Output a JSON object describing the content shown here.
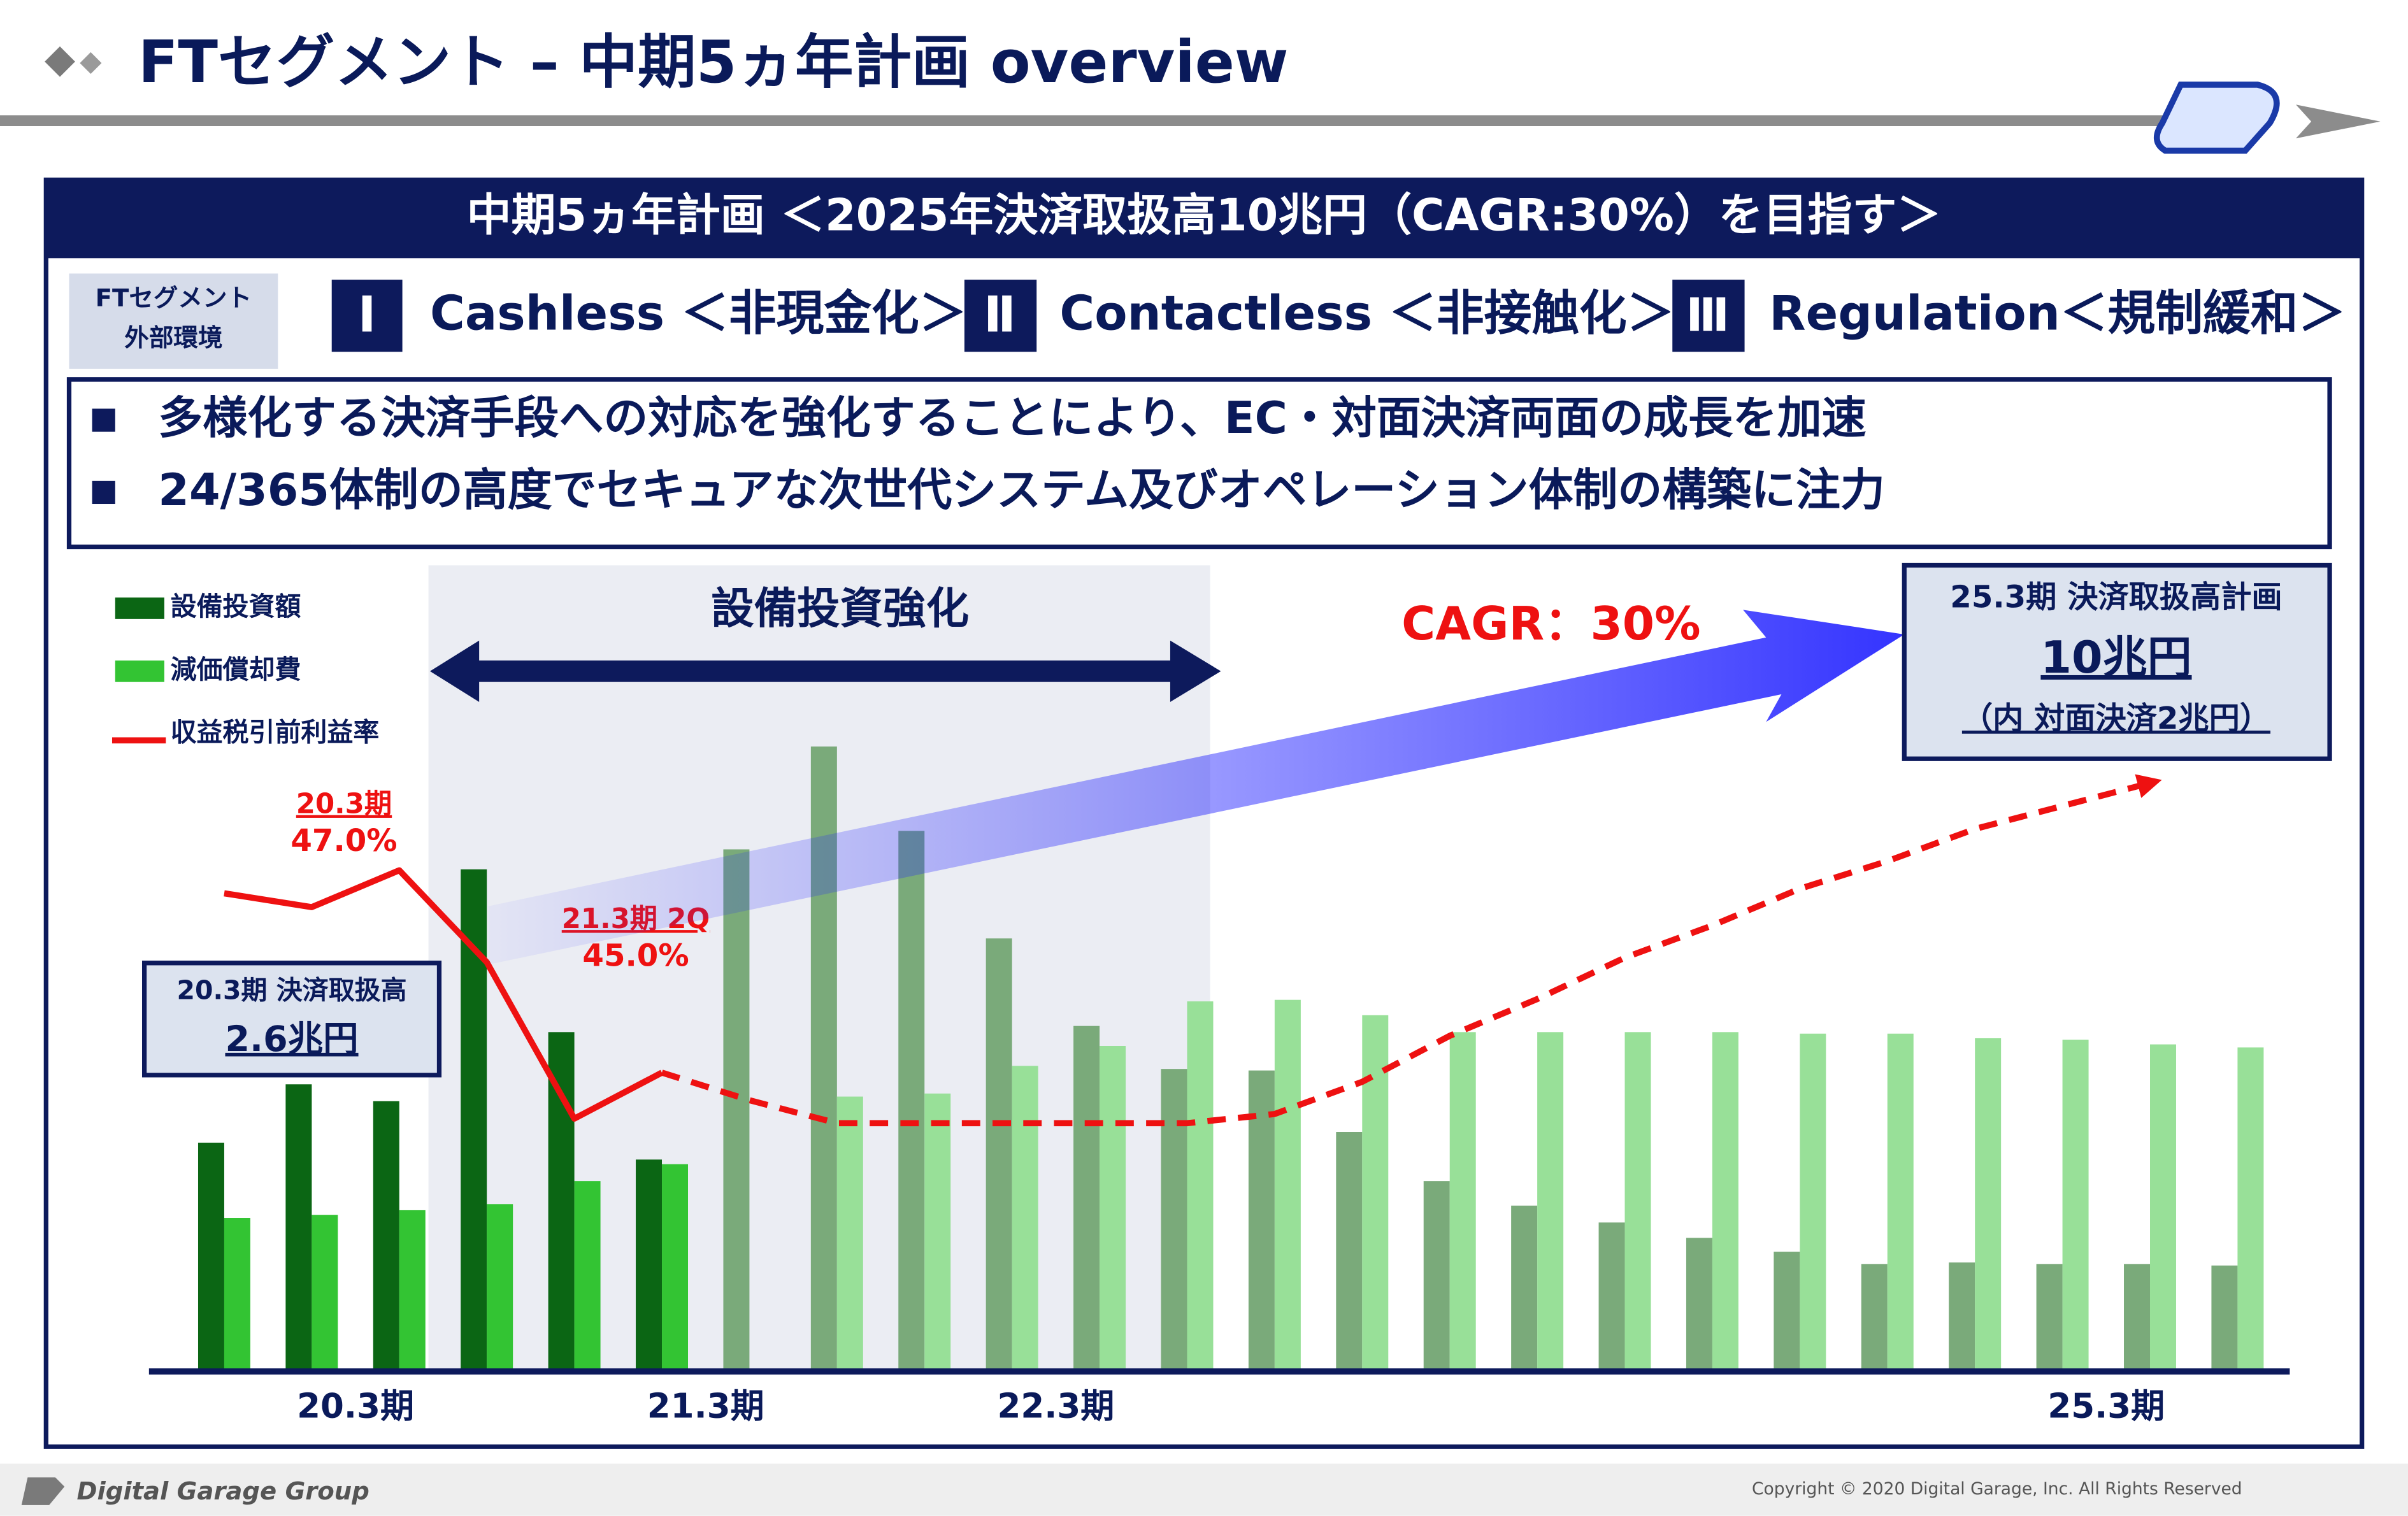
{
  "header": {
    "title": "FTセグメント – 中期5ヵ年計画 overview"
  },
  "banner": "中期5ヵ年計画 ＜2025年決済取扱高10兆円（CAGR:30%）を目指す＞",
  "environment": {
    "label": [
      "FTセグメント",
      "外部環境"
    ],
    "items": [
      {
        "numeral": "Ⅰ",
        "text": "Cashless ＜非現金化＞"
      },
      {
        "numeral": "Ⅱ",
        "text": "Contactless ＜非接触化＞"
      },
      {
        "numeral": "Ⅲ",
        "text": "Regulation＜規制緩和＞"
      }
    ]
  },
  "bullets": [
    "多様化する決済手段への対応を強化することにより、EC・対面決済両面の成長を加速",
    "24/365体制の高度でセキュアな次世代システム及びオペレーション体制の構築に注力"
  ],
  "callouts": {
    "current": [
      "20.3期 決済取扱高",
      "2.6兆円"
    ],
    "target": [
      "25.3期 決済取扱高計画",
      "10兆円",
      "（内 対面決済2兆円）"
    ]
  },
  "chart_data": {
    "type": "bar",
    "shaded_label": "設備投資強化",
    "cagr_label": "CAGR：30%",
    "categories": [
      null,
      null,
      "20.3期",
      null,
      null,
      null,
      "21.3期",
      null,
      null,
      null,
      "22.3期",
      null,
      null,
      null,
      null,
      null,
      null,
      null,
      null,
      null,
      null,
      null,
      "25.3期",
      null
    ],
    "ylim": [
      0,
      100
    ],
    "y2lim": [
      36.1,
      52.8
    ],
    "forecast_start": 6,
    "series": [
      {
        "name": "設備投資額",
        "color": "#0b6614",
        "forecast_color": "#7aaa7a",
        "values": [
          29.8,
          37.4,
          35.2,
          65.4,
          44.2,
          27.6,
          68,
          81.4,
          70.4,
          56.4,
          45,
          39.4,
          39.2,
          31.2,
          24.8,
          21.6,
          19.4,
          17.4,
          15.6,
          14,
          14.2,
          14,
          14,
          13.8
        ]
      },
      {
        "name": "減価償却費",
        "color": "#33c433",
        "forecast_color": "#98e098",
        "values": [
          20,
          20.4,
          21,
          21.8,
          24.8,
          27,
          null,
          35.8,
          36.2,
          39.8,
          42.4,
          48.2,
          48.4,
          46.4,
          44.2,
          44.2,
          44.2,
          44.2,
          44,
          44,
          43.4,
          43.2,
          42.6,
          42.2
        ]
      },
      {
        "name": "収益税引前利益率",
        "type": "line",
        "axis": "y2",
        "color": "#ee1111",
        "dash_from": 5,
        "values": [
          46.5,
          46.2,
          47.0,
          45.0,
          41.6,
          42.6,
          42.0,
          41.5,
          41.5,
          41.5,
          41.5,
          41.5,
          41.7,
          42.4,
          43.4,
          44.2,
          45.1,
          45.8,
          46.6,
          47.2,
          47.9,
          48.4,
          48.9,
          null
        ],
        "value_labels": [
          null,
          null,
          "47.0%",
          "45.0%",
          null,
          null,
          null,
          null,
          null,
          null,
          null,
          null,
          null,
          null,
          null,
          null,
          null,
          null,
          null,
          null,
          null,
          null,
          null,
          null
        ],
        "point_labels": [
          null,
          null,
          "20.3期",
          "21.3期 2Q",
          null,
          null,
          null,
          null,
          null,
          null,
          null,
          null,
          null,
          null,
          null,
          null,
          null,
          null,
          null,
          null,
          null,
          null,
          null,
          null
        ]
      }
    ]
  },
  "footer": {
    "company": "Digital Garage Group",
    "copyright": "Copyright © 2020 Digital Garage, Inc. All Rights Reserved"
  }
}
